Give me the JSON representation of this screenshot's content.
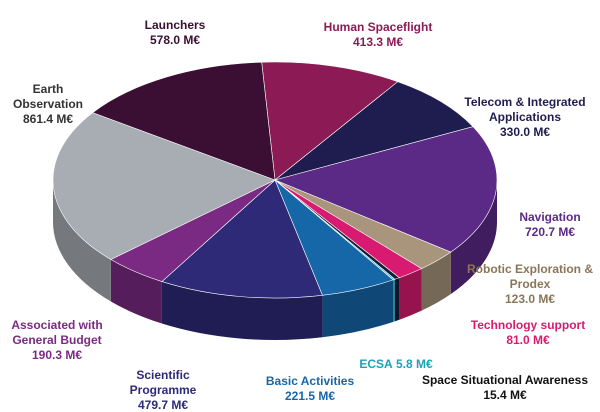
{
  "chart_data": {
    "type": "pie",
    "categories": [
      "Human Spaceflight",
      "Telecom & Integrated Applications",
      "Navigation",
      "Robotic Exploration & Prodex",
      "Technology support",
      "Space Situational Awareness",
      "ECSA",
      "Basic Activities",
      "Scientific Programme",
      "Associated with General Budget",
      "Earth Observation",
      "Launchers"
    ],
    "values": [
      413.3,
      330.0,
      720.7,
      123.0,
      81.0,
      15.4,
      5.8,
      221.5,
      479.7,
      190.3,
      861.4,
      578.0
    ],
    "value_labels": [
      "413.3 M€",
      "330.0 M€",
      "720.7 M€",
      "123.0 M€",
      "81.0 M€",
      "15.4 M€",
      "5.8 M€",
      "221.5 M€",
      "479.7 M€",
      "190.3 M€",
      "861.4 M€",
      "578.0 M€"
    ],
    "colors": [
      "#8b1a55",
      "#1f1d4f",
      "#5b2a86",
      "#a8957c",
      "#d81b70",
      "#1b1b3a",
      "#22b8cf",
      "#1667a8",
      "#2e2a78",
      "#7a2a82",
      "#a7adb3",
      "#3a0f33"
    ],
    "label_colors": [
      "#8b1a55",
      "#1f1d4f",
      "#5b2a86",
      "#8a7557",
      "#d81b70",
      "#111111",
      "#1aa3b8",
      "#1667a8",
      "#2e2a78",
      "#7a2a82",
      "#333333",
      "#3a0f33"
    ]
  }
}
